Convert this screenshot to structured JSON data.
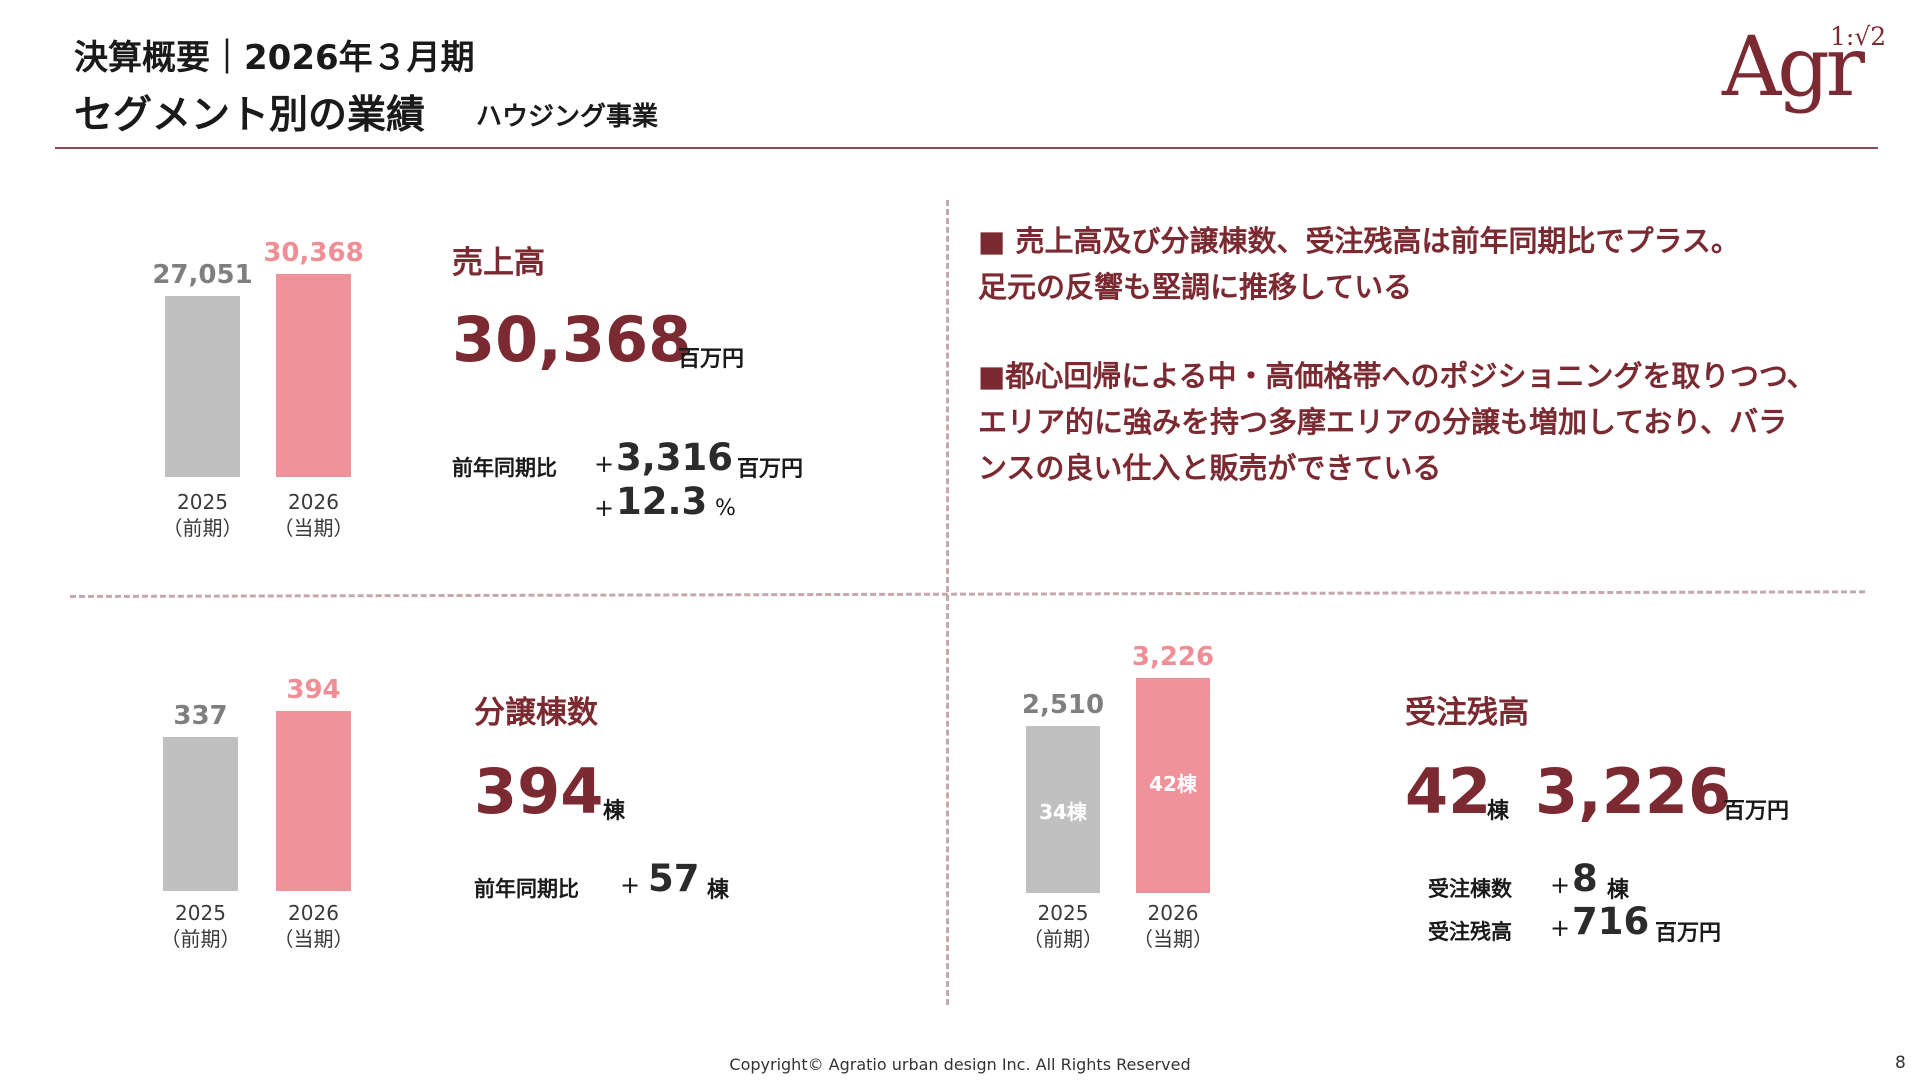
{
  "header": {
    "title_line1": "決算概要｜2026年３月期",
    "title_line2": "セグメント別の業績",
    "subtitle": "ハウジング事業"
  },
  "logo": {
    "text": "Agr",
    "ratio": "1:√2"
  },
  "colors": {
    "maroon": "#7b2a31",
    "pink": "#f0929a",
    "gray": "#c0c0c0",
    "rule": "#8a4a4f",
    "dash": "#c4a8ab"
  },
  "sales": {
    "title": "売上高",
    "value": "30,368",
    "unit": "百万円",
    "yoy_label": "前年同期比",
    "yoy_plus1": "+",
    "yoy_abs": "3,316",
    "yoy_abs_unit": "百万円",
    "yoy_plus2": "+",
    "yoy_pct": "12.3",
    "yoy_pct_unit": "%"
  },
  "units_sold": {
    "title": "分譲棟数",
    "value": "394",
    "unit": "棟",
    "yoy_label": "前年同期比",
    "yoy_plus": "+",
    "yoy_abs": "57",
    "yoy_abs_unit": "棟"
  },
  "backlog": {
    "title": "受注残高",
    "units_value": "42",
    "units_unit": "棟",
    "amount_value": "3,226",
    "amount_unit": "百万円",
    "row1_label": "受注棟数",
    "row1_plus": "+",
    "row1_value": "8",
    "row1_unit": "棟",
    "row2_label": "受注残高",
    "row2_plus": "+",
    "row2_value": "716",
    "row2_unit": "百万円"
  },
  "comments": {
    "line1": "■ 売上高及び分譲棟数、受注残高は前年同期比でプラス。",
    "line2": "足元の反響も堅調に推移している",
    "line3": "■都心回帰による中・高価格帯へのポジショニングを取りつつ、",
    "line4": "エリア的に強みを持つ多摩エリアの分譲も増加しており、バラ",
    "line5": "ンスの良い仕入と販売ができている"
  },
  "chart_data": [
    {
      "type": "bar",
      "categories": [
        "2025\n（前期）",
        "2026\n（当期）"
      ],
      "cat_year": [
        "2025",
        "2026"
      ],
      "cat_period": [
        "（前期）",
        "（当期）"
      ],
      "values": [
        27051,
        30368
      ],
      "value_labels": [
        "27,051",
        "30,368"
      ]
    },
    {
      "type": "bar",
      "categories": [
        "2025\n（前期）",
        "2026\n（当期）"
      ],
      "cat_year": [
        "2025",
        "2026"
      ],
      "cat_period": [
        "（前期）",
        "（当期）"
      ],
      "values": [
        337,
        394
      ],
      "value_labels": [
        "337",
        "394"
      ]
    },
    {
      "type": "bar",
      "categories": [
        "2025\n（前期）",
        "2026\n（当期）"
      ],
      "cat_year": [
        "2025",
        "2026"
      ],
      "cat_period": [
        "（前期）",
        "（当期）"
      ],
      "values": [
        2510,
        3226
      ],
      "value_labels": [
        "2,510",
        "3,226"
      ],
      "bar_inner_labels": [
        "34棟",
        "42棟"
      ]
    }
  ],
  "footer": {
    "copyright": "Copyright© Agratio urban design Inc. All Rights Reserved",
    "page": "8"
  }
}
